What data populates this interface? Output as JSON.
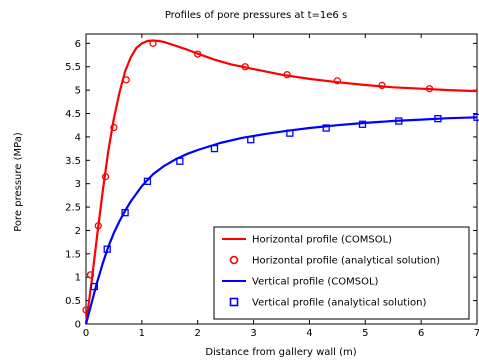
{
  "chart_data": {
    "type": "line",
    "title": "Profiles of pore pressures at t=1e6 s",
    "xlabel": "Distance from gallery wall (m)",
    "ylabel": "Pore pressure (MPa)",
    "xlim": [
      0,
      7
    ],
    "ylim": [
      0,
      6.2
    ],
    "xticks": [
      0,
      1,
      2,
      3,
      4,
      5,
      6,
      7
    ],
    "yticks": [
      0,
      0.5,
      1,
      1.5,
      2,
      2.5,
      3,
      3.5,
      4,
      4.5,
      5,
      5.5,
      6
    ],
    "grid": false,
    "legend_position": "lower-right",
    "series": [
      {
        "name": "Horizontal profile (COMSOL)",
        "kind": "line",
        "color": "#ff0000",
        "x": [
          0,
          0.1,
          0.2,
          0.3,
          0.4,
          0.5,
          0.6,
          0.7,
          0.8,
          0.9,
          1.0,
          1.1,
          1.2,
          1.3,
          1.4,
          1.6,
          1.8,
          2.0,
          2.3,
          2.6,
          3.0,
          3.5,
          4.0,
          4.5,
          5.0,
          5.5,
          6.0,
          6.5,
          7.0
        ],
        "y": [
          0,
          0.9,
          1.9,
          2.85,
          3.7,
          4.4,
          4.95,
          5.4,
          5.7,
          5.9,
          6.0,
          6.05,
          6.06,
          6.05,
          6.03,
          5.95,
          5.87,
          5.78,
          5.65,
          5.55,
          5.45,
          5.33,
          5.24,
          5.17,
          5.11,
          5.06,
          5.03,
          5.0,
          4.98
        ]
      },
      {
        "name": "Horizontal profile (analytical solution)",
        "kind": "marker-circle",
        "color": "#ff0000",
        "x": [
          0,
          0.08,
          0.22,
          0.35,
          0.5,
          0.72,
          1.2,
          2.0,
          2.85,
          3.6,
          4.5,
          5.3,
          6.15
        ],
        "y": [
          0.3,
          1.05,
          2.1,
          3.15,
          4.2,
          5.22,
          6.0,
          5.77,
          5.5,
          5.33,
          5.2,
          5.1,
          5.03
        ]
      },
      {
        "name": "Vertical profile (COMSOL)",
        "kind": "line",
        "color": "#0000ff",
        "x": [
          0,
          0.1,
          0.2,
          0.3,
          0.4,
          0.5,
          0.6,
          0.7,
          0.8,
          1.0,
          1.2,
          1.4,
          1.6,
          1.8,
          2.0,
          2.4,
          2.8,
          3.2,
          3.6,
          4.0,
          4.5,
          5.0,
          5.5,
          6.0,
          6.5,
          7.0
        ],
        "y": [
          0,
          0.45,
          0.9,
          1.3,
          1.65,
          1.95,
          2.2,
          2.42,
          2.62,
          2.95,
          3.2,
          3.38,
          3.52,
          3.63,
          3.72,
          3.87,
          3.98,
          4.06,
          4.13,
          4.19,
          4.25,
          4.3,
          4.34,
          4.37,
          4.4,
          4.42
        ]
      },
      {
        "name": "Vertical profile (analytical solution)",
        "kind": "marker-square",
        "color": "#0000ff",
        "x": [
          0.15,
          0.38,
          0.7,
          1.1,
          1.68,
          2.3,
          2.95,
          3.65,
          4.3,
          4.95,
          5.6,
          6.3,
          7.0
        ],
        "y": [
          0.8,
          1.6,
          2.38,
          3.05,
          3.48,
          3.75,
          3.94,
          4.08,
          4.19,
          4.27,
          4.34,
          4.39,
          4.42
        ]
      }
    ]
  }
}
